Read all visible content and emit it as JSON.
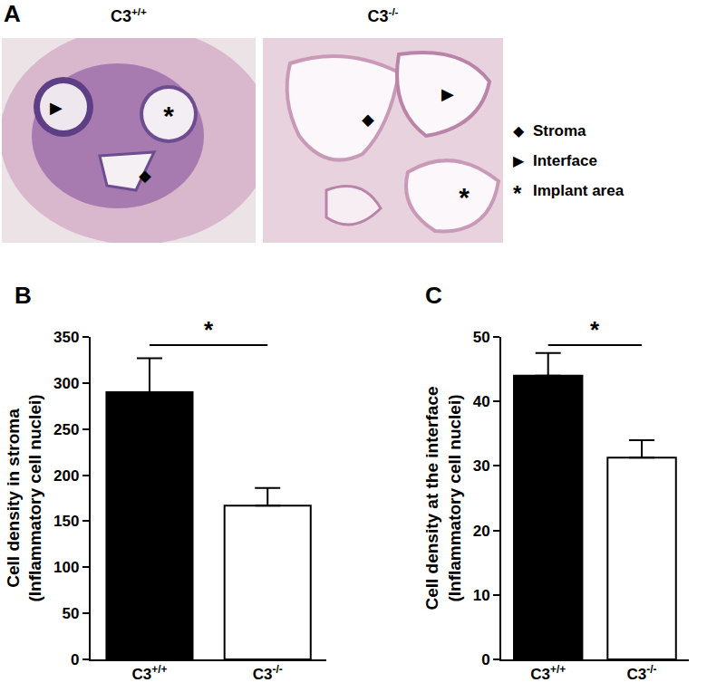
{
  "panel_a": {
    "label": "A",
    "images": [
      {
        "label": "C3+/+"
      },
      {
        "label": "C3-/-"
      }
    ],
    "legend": [
      {
        "symbol": "◆",
        "text": "Stroma"
      },
      {
        "symbol": "▶",
        "text": "Interface"
      },
      {
        "symbol": "*",
        "text": "Implant area"
      }
    ]
  },
  "chart_data": [
    {
      "type": "bar",
      "title": "B",
      "categories": [
        "C3+/+",
        "C3-/-"
      ],
      "values": [
        290,
        167
      ],
      "error": [
        37,
        19
      ],
      "colors": [
        "#000000",
        "#ffffff"
      ],
      "y_label": "Cell density in stroma\n(Inflammatory cell nuclei)",
      "ylim": [
        0,
        350
      ],
      "yticks": [
        0,
        50,
        100,
        150,
        200,
        250,
        300,
        350
      ],
      "grid": false,
      "annotations": [
        {
          "text": "*",
          "between": [
            "C3+/+",
            "C3-/-"
          ]
        }
      ]
    },
    {
      "type": "bar",
      "title": "C",
      "categories": [
        "C3+/+",
        "C3-/-"
      ],
      "values": [
        44,
        31.3
      ],
      "error": [
        3.5,
        2.7
      ],
      "colors": [
        "#000000",
        "#ffffff"
      ],
      "y_label": "Cell density at the interface\n(Inflammatory cell nuclei)",
      "ylim": [
        0,
        50
      ],
      "yticks": [
        0,
        10,
        20,
        30,
        40,
        50
      ],
      "grid": false,
      "annotations": [
        {
          "text": "*",
          "between": [
            "C3+/+",
            "C3-/-"
          ]
        }
      ]
    }
  ]
}
